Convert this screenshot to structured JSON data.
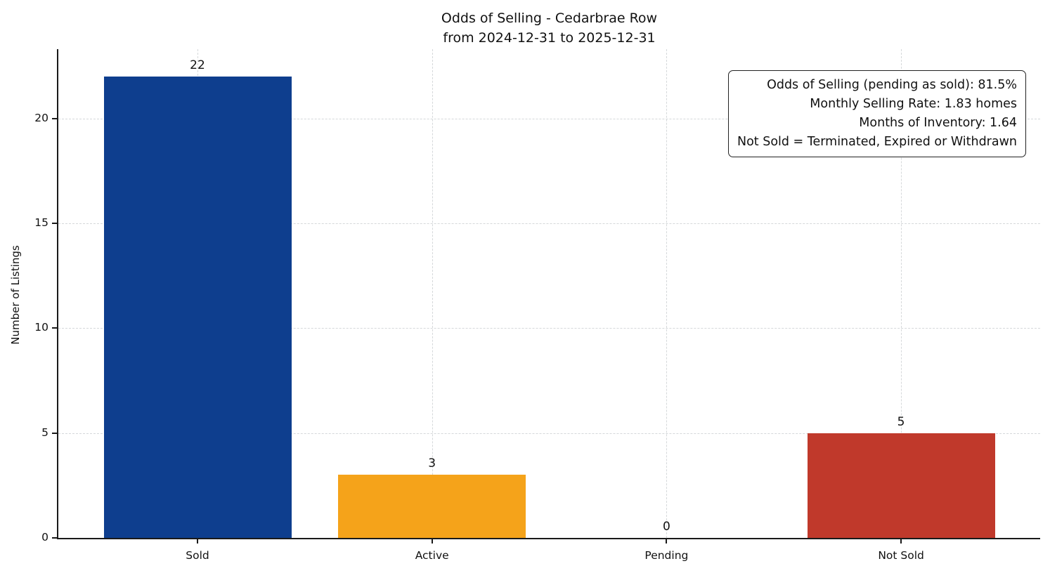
{
  "chart_data": {
    "type": "bar",
    "title": "Odds of Selling - Cedarbrae Row",
    "subtitle": "from 2024-12-31 to 2025-12-31",
    "categories": [
      "Sold",
      "Active",
      "Pending",
      "Not Sold"
    ],
    "values": [
      22,
      3,
      0,
      5
    ],
    "bar_colors": [
      "#0e3e8e",
      "#f5a31a",
      "#999999",
      "#c0392b"
    ],
    "xlabel": "",
    "ylabel": "Number of Listings",
    "ylim": [
      0,
      23.3
    ],
    "yticks": [
      0,
      5,
      10,
      15,
      20
    ],
    "grid": true,
    "legend": null,
    "annotation": {
      "lines": [
        "Odds of Selling (pending as sold): 81.5%",
        "Monthly Selling Rate: 1.83 homes",
        "Months of Inventory: 1.64",
        "Not Sold = Terminated, Expired or Withdrawn"
      ]
    }
  }
}
